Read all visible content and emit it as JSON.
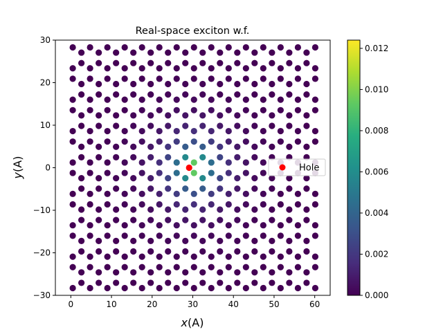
{
  "chart_data": {
    "type": "scatter",
    "title": "Real-space exciton w.f.",
    "xlabel_var": "x",
    "xlabel_unit": "(A)",
    "ylabel_var": "y",
    "ylabel_unit": "(A)",
    "xlim": [
      -3.8,
      63.8
    ],
    "ylim": [
      -30,
      30
    ],
    "xticks": [
      0,
      10,
      20,
      30,
      40,
      50,
      60
    ],
    "yticks": [
      -30,
      -20,
      -10,
      0,
      10,
      20,
      30
    ],
    "xtick_labels": [
      "0",
      "10",
      "20",
      "30",
      "40",
      "50",
      "60"
    ],
    "ytick_labels": [
      "−30",
      "−20",
      "−10",
      "0",
      "10",
      "20",
      "30"
    ],
    "lattice": {
      "spacing": 2.46,
      "x_range": [
        0,
        61
      ],
      "y_range": [
        -30.5,
        30.5
      ]
    },
    "center": {
      "x": 30.3,
      "y": 0
    },
    "amplitude": {
      "peak": 0.0124,
      "decay_length": 4.3
    },
    "hole": {
      "x": 29.1,
      "y": 0,
      "color": "#ff0000"
    },
    "legend": {
      "location": "right",
      "label": "Hole"
    },
    "colorbar": {
      "colormap": "viridis",
      "min": 0.0,
      "max": 0.0124,
      "ticks": [
        0.0,
        0.002,
        0.004,
        0.006,
        0.008,
        0.01,
        0.012
      ],
      "tick_labels": [
        "0.000",
        "0.002",
        "0.004",
        "0.006",
        "0.008",
        "0.010",
        "0.012"
      ]
    }
  }
}
